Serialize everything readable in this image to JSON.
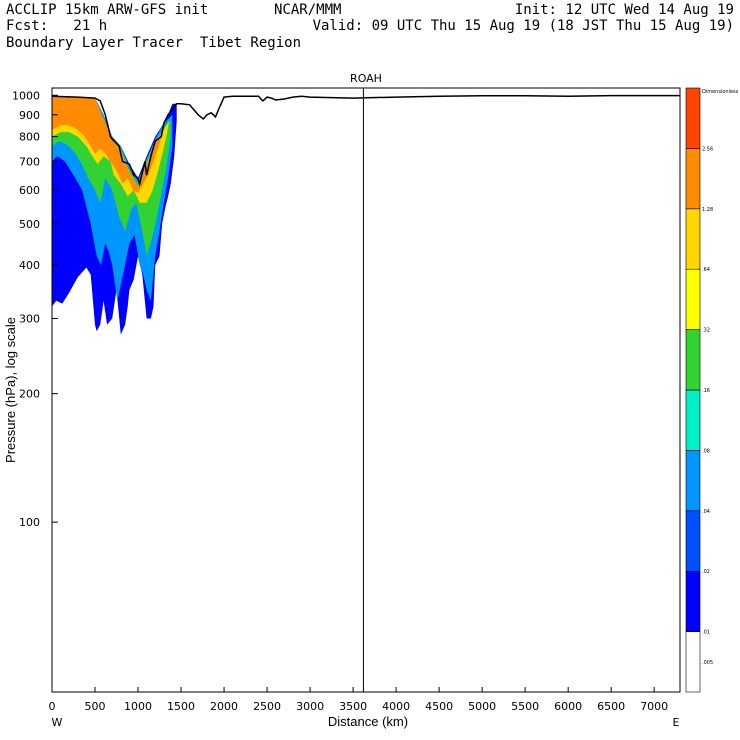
{
  "header": {
    "line1_left": "ACCLIP 15km ARW-GFS init",
    "line1_mid": "NCAR/MMM",
    "line1_right": "Init: 12 UTC Wed 14 Aug 19",
    "line2_left": "Fcst:   21 h",
    "line2_right": "Valid: 09 UTC Thu 15 Aug 19 (18 JST Thu 15 Aug 19)",
    "line3_left": "Boundary Layer Tracer  Tibet Region"
  },
  "chart_data": {
    "type": "heatmap",
    "title": "ROAH",
    "xlabel": "Distance (km)",
    "ylabel": "Pressure (hPa), log scale",
    "x_ticks": [
      0,
      500,
      1000,
      1500,
      2000,
      2500,
      3000,
      3500,
      4000,
      4500,
      5000,
      5500,
      6000,
      6500,
      7000
    ],
    "y_ticks": [
      100,
      200,
      300,
      400,
      500,
      600,
      700,
      800,
      900,
      1000
    ],
    "y_scale": "log",
    "xlim": [
      0,
      7300
    ],
    "ylim": [
      1040,
      40
    ],
    "x_end_labels": {
      "left": "W",
      "right": "E"
    },
    "marker_line_x": 3620,
    "colorbar": {
      "labels": [
        ".005",
        ".01",
        ".02",
        ".04",
        ".08",
        ".16",
        ".32",
        ".64",
        "1.28",
        "2.56",
        "Dimensionless"
      ],
      "colors": [
        "#ffffff",
        "#0000ff",
        "#0050ff",
        "#0096ff",
        "#00f0c8",
        "#32d232",
        "#ffff00",
        "#ffd700",
        "#ff8c00",
        "#ff4500"
      ]
    },
    "terrain_surface": {
      "x": [
        0,
        300,
        500,
        560,
        620,
        680,
        700,
        780,
        820,
        900,
        950,
        1000,
        1020,
        1080,
        1100,
        1150,
        1200,
        1270,
        1300,
        1350,
        1400,
        1450,
        1500,
        1600,
        1700,
        1760,
        1800,
        1850,
        1900,
        1940,
        2000,
        2100,
        2400,
        2450,
        2500,
        2550,
        2600,
        2700,
        2800,
        2900,
        3000,
        3500,
        4000,
        4500,
        5000,
        5500,
        6000,
        6500,
        7000,
        7300
      ],
      "p": [
        995,
        990,
        985,
        970,
        900,
        800,
        790,
        760,
        700,
        690,
        650,
        640,
        620,
        700,
        650,
        720,
        780,
        800,
        860,
        900,
        930,
        955,
        955,
        950,
        900,
        880,
        900,
        910,
        890,
        930,
        990,
        995,
        995,
        970,
        990,
        985,
        975,
        980,
        990,
        995,
        990,
        985,
        990,
        995,
        997,
        997,
        995,
        998,
        998,
        998
      ]
    },
    "tracer_layers": [
      {
        "level": ".01",
        "color": "#0000ff",
        "x": [
          0,
          50,
          120,
          200,
          300,
          400,
          450,
          500,
          520,
          560,
          600,
          640,
          700,
          750,
          800,
          850,
          880,
          900,
          950,
          1000,
          1050,
          1100,
          1150,
          1180,
          1200,
          1250,
          1280,
          1320,
          1350,
          1380,
          1420,
          1450,
          1450,
          1400,
          1350,
          1300,
          1200,
          1100,
          1000,
          900,
          800,
          700,
          600,
          500,
          400,
          300,
          200,
          100,
          0
        ],
        "p": [
          320,
          330,
          325,
          345,
          375,
          395,
          380,
          290,
          280,
          290,
          330,
          290,
          300,
          350,
          275,
          290,
          320,
          350,
          370,
          420,
          380,
          300,
          300,
          320,
          400,
          420,
          500,
          550,
          580,
          620,
          720,
          870,
          955,
          955,
          900,
          860,
          800,
          720,
          640,
          690,
          760,
          800,
          900,
          985,
          990,
          990,
          990,
          995,
          995
        ]
      },
      {
        "level": ".04",
        "color": "#0096ff",
        "x": [
          0,
          60,
          150,
          250,
          350,
          450,
          520,
          570,
          620,
          660,
          700,
          760,
          800,
          850,
          900,
          960,
          1020,
          1060,
          1100,
          1150,
          1200,
          1250,
          1300,
          1350,
          1400,
          1400,
          1300,
          1200,
          1100,
          1000,
          900,
          800,
          700,
          600,
          500,
          400,
          300,
          200,
          100,
          0
        ],
        "p": [
          700,
          720,
          700,
          650,
          600,
          500,
          420,
          400,
          450,
          430,
          400,
          330,
          360,
          400,
          450,
          470,
          400,
          380,
          350,
          330,
          420,
          480,
          560,
          640,
          760,
          900,
          860,
          790,
          710,
          630,
          680,
          760,
          800,
          900,
          985,
          990,
          990,
          990,
          995,
          995
        ]
      },
      {
        "level": ".16",
        "color": "#32d232",
        "x": [
          0,
          80,
          160,
          250,
          330,
          420,
          500,
          560,
          620,
          700,
          780,
          850,
          920,
          980,
          1050,
          1100,
          1160,
          1220,
          1280,
          1330,
          1380,
          1380,
          1300,
          1200,
          1100,
          1000,
          900,
          800,
          700,
          600,
          500,
          400,
          300,
          200,
          100,
          0
        ],
        "p": [
          760,
          780,
          770,
          740,
          700,
          640,
          600,
          560,
          640,
          600,
          520,
          480,
          540,
          560,
          480,
          420,
          460,
          520,
          600,
          680,
          800,
          880,
          840,
          780,
          700,
          620,
          670,
          750,
          790,
          880,
          985,
          990,
          990,
          990,
          995,
          995
        ]
      },
      {
        "level": ".64",
        "color": "#ffd700",
        "x": [
          0,
          100,
          200,
          300,
          400,
          470,
          530,
          600,
          680,
          720,
          800,
          880,
          950,
          1020,
          1100,
          1170,
          1230,
          1290,
          1340,
          1360,
          1300,
          1200,
          1100,
          1000,
          900,
          800,
          700,
          600,
          500,
          400,
          300,
          200,
          100,
          0
        ],
        "p": [
          800,
          820,
          820,
          800,
          760,
          720,
          690,
          720,
          700,
          650,
          620,
          580,
          600,
          560,
          560,
          600,
          660,
          740,
          820,
          870,
          830,
          770,
          690,
          610,
          660,
          740,
          790,
          880,
          985,
          990,
          990,
          990,
          995,
          995
        ]
      },
      {
        "level": "1.28",
        "color": "#ff8c00",
        "x": [
          0,
          100,
          200,
          300,
          380,
          450,
          500,
          560,
          620,
          700,
          760,
          820,
          880,
          940,
          1000,
          1060,
          1120,
          1180,
          1240,
          1290,
          1330,
          1300,
          1200,
          1100,
          1000,
          900,
          800,
          700,
          600,
          500,
          400,
          300,
          200,
          100,
          0
        ],
        "p": [
          830,
          850,
          850,
          830,
          800,
          760,
          730,
          750,
          730,
          690,
          660,
          620,
          640,
          600,
          590,
          620,
          650,
          700,
          760,
          820,
          860,
          830,
          770,
          690,
          610,
          660,
          740,
          790,
          880,
          985,
          990,
          990,
          990,
          995,
          995
        ]
      }
    ]
  }
}
